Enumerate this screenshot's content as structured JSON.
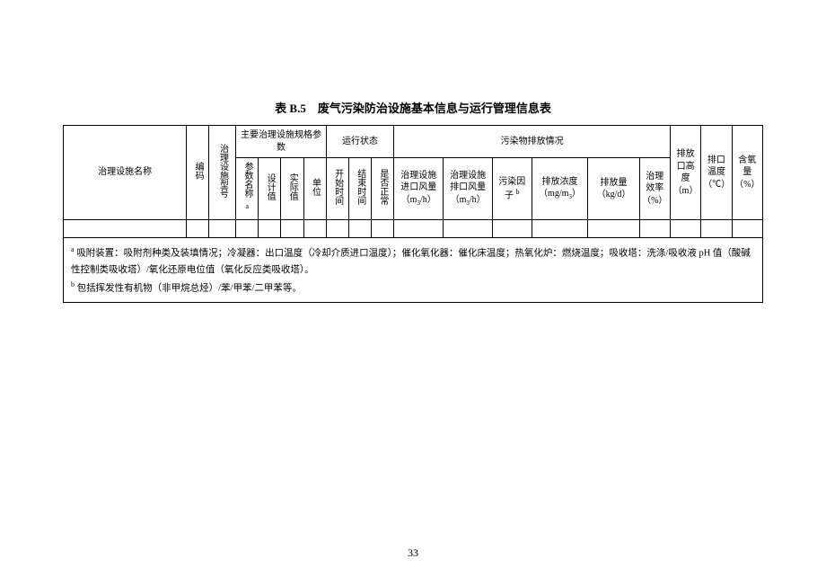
{
  "title": "表 B.5　废气污染防治设施基本信息与运行管理信息表",
  "pageNumber": "33",
  "headers": {
    "facilityName": "治理设施名称",
    "code": "编码",
    "facilityModel": "治理设施型号",
    "mainSpec": "主要治理设施规格参数",
    "paramName": "参数名称",
    "designValue": "设计值",
    "actualValue": "实际值",
    "unit": "单位",
    "runStatus": "运行状态",
    "startTime": "开始时间",
    "endTime": "结束时间",
    "isNormal": "是否正常",
    "emissionStatus": "污染物排放情况",
    "inletWind": "治理设施进口风量",
    "inletWindUnit": "（m³/h）",
    "outletWind": "治理设施排口风量",
    "outletWindUnit": "（m³/h）",
    "pollutantFactor": "污染因子",
    "emissionConc": "排放浓度",
    "emissionConcUnit": "（mg/m³）",
    "emissionAmount": "排放量",
    "emissionAmountUnit": "（kg/d）",
    "treatEff": "治理效率",
    "treatEffUnit": "（%）",
    "outletHeight": "排放口高度",
    "outletHeightUnit": "（m）",
    "outletTemp": "排口温度",
    "outletTempUnit": "（℃）",
    "oxygen": "含氧量",
    "oxygenUnit": "（%）"
  },
  "footnotes": {
    "noteA": "吸附装置：吸附剂种类及装填情况；冷凝器：出口温度（冷却介质进口温度）；催化氧化器：催化床温度；热氧化炉：燃烧温度；吸收塔：洗涤/吸收液 pH 值（酸碱性控制类吸收塔）/氧化还原电位值（氧化反应类吸收塔）。",
    "noteB": "包括挥发性有机物（非甲烷总烃）/苯/甲苯/二甲苯等。"
  },
  "style": {
    "background": "#ffffff",
    "borderColor": "#000000",
    "titleFontSize": 13,
    "cellFontSize": 10,
    "footnoteFontSize": 10.5
  }
}
